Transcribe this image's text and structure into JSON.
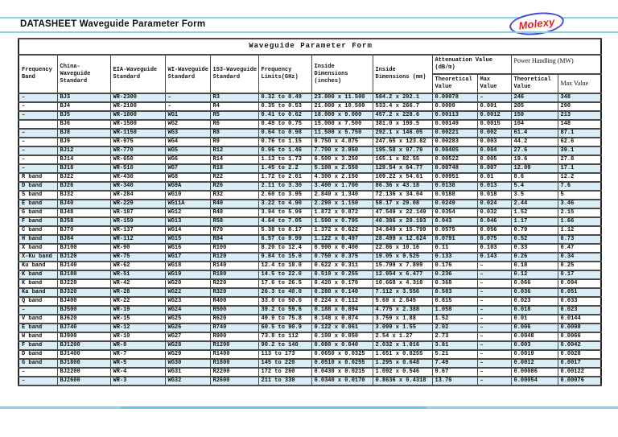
{
  "page": {
    "header_title": "DATASHEET Waveguide Parameter Form",
    "logo_text": "Molexy",
    "table_title": "Waveguide Parameter Form"
  },
  "colors": {
    "accent_rule": "#8ad2ea",
    "row_tint": "#d8edf6",
    "logo_red": "#e81f1f",
    "logo_blue": "#4747d8",
    "grid_line": "#4a4a4a"
  },
  "table": {
    "columns": [
      "Frequency Band",
      "China-Waveguide Standard",
      "EIA-Waveguide Standard",
      "WI-Waveguide Standard",
      "153-Waveguide Standard",
      "Frequency Limits(GHz)",
      "Inside Dimensions (inches)",
      "Inside Dimensions (mm)"
    ],
    "attenuation_header": "Attenuation Value (dB/m)",
    "power_header": "Power Handling (MW)",
    "sub_theoretical": "Theoretical Value",
    "sub_max": "Max Value",
    "rows": [
      [
        "–",
        "BJ3",
        "WR-2300",
        "–",
        "R3",
        "0.32 to 0.49",
        "23.000 x 11.500",
        "584.2 x 292.1",
        "0.00078",
        "–",
        "246",
        "348"
      ],
      [
        "–",
        "BJ4",
        "WR-2100",
        "–",
        "R4",
        "0.35 to 0.53",
        "21.000 x 10.500",
        "533.4 x 266.7",
        "0.0009",
        "0.001",
        "205",
        "290"
      ],
      [
        "–",
        "BJ5",
        "WR-1800",
        "WG1",
        "R5",
        "0.41 to 0.62",
        "18.000 x 9.000",
        "457.2 x 228.6",
        "0.00113",
        "0.0012",
        "150",
        "213"
      ],
      [
        "",
        "BJ6",
        "WR-1500",
        "WG2",
        "R6",
        "0.49 to 0.75",
        "15.000 x 7.500",
        "381.0 x 190.5",
        "0.00149",
        "0.0015",
        "104",
        "148"
      ],
      [
        "–",
        "BJ8",
        "WR-1150",
        "WG3",
        "R8",
        "0.64 to 0.98",
        "11.500 x 5.750",
        "292.1 x 146.05",
        "0.00221",
        "0.002",
        "61.4",
        "87.1"
      ],
      [
        "–",
        "BJ9",
        "WR-975",
        "WG4",
        "R9",
        "0.76 to 1.15",
        "9.750 x 4.875",
        "247.65 x 123.82",
        "0.00283",
        "0.003",
        "44.2",
        "62.6"
      ],
      [
        "–",
        "BJ12",
        "WR-770",
        "WG5",
        "R12",
        "0.96 to 1.46",
        "7.700 x 3.850",
        "195.58 x 97.79",
        "0.00405",
        "0.004",
        "27.6",
        "39.1"
      ],
      [
        "–",
        "BJ14",
        "WR-650",
        "WG6",
        "R14",
        "1.13 to 1.73",
        "6.500 x 3.250",
        "165.1 x 82.55",
        "0.00522",
        "0.005",
        "19.6",
        "27.8"
      ],
      [
        "–",
        "BJ18",
        "WR-510",
        "WG7",
        "R18",
        "1.45 to 2.2",
        "5.100 x 2.550",
        "129.54 x 64.77",
        "0.00748",
        "0.007",
        "12.09",
        "17.1"
      ],
      [
        "R band",
        "BJ22",
        "WR-430",
        "WG8",
        "R22",
        "1.72 to 2.61",
        "4.300 x 2.150",
        "109.22 x 54.61",
        "0.00951",
        "0.01",
        "8.6",
        "12.2"
      ],
      [
        "D band",
        "BJ26",
        "WR-340",
        "WG9A",
        "R26",
        "2.11 to 3.30",
        "3.400 x 1.700",
        "86.36 x 43.18",
        "0.0138",
        "0.013",
        "5.4",
        "7.6"
      ],
      [
        "S band",
        "BJ32",
        "WR-284",
        "WG10",
        "R32",
        "2.60 to 3.95",
        "2.840 x 1.340",
        "72.136 x 34.04",
        "0.0188",
        "0.018",
        "3.5",
        "5"
      ],
      [
        "E band",
        "BJ40",
        "WR-229",
        "WG11A",
        "R40",
        "3.22 to 4.90",
        "2.290 x 1.150",
        "58.17 x 29.08",
        "0.0249",
        "0.024",
        "2.44",
        "3.46"
      ],
      [
        "G band",
        "BJ48",
        "WR-187",
        "WG12",
        "R48",
        "3.94 to 5.99",
        "1.872 x 0.872",
        "47.549 x 22.149",
        "0.0354",
        "0.032",
        "1.52",
        "2.15"
      ],
      [
        "F band",
        "BJ58",
        "WR-159",
        "WG13",
        "R58",
        "4.64 to 7.05",
        "1.590 x 0.795",
        "40.386 x 20.193",
        "0.043",
        "0.046",
        "1.17",
        "1.66"
      ],
      [
        "C band",
        "BJ70",
        "WR-137",
        "WG14",
        "R70",
        "5.38 to 8.17",
        "1.372 x 0.622",
        "34.849 x 15.799",
        "0.0575",
        "0.056",
        "0.79",
        "1.12"
      ],
      [
        "H band",
        "BJ84",
        "WR-112",
        "WG15",
        "R84",
        "6.57 to 9.99",
        "1.122 x 0.497",
        "28.499 x 12.624",
        "0.0791",
        "0.075",
        "0.52",
        "0.73"
      ],
      [
        "X band",
        "BJ100",
        "WR-90",
        "WG16",
        "R100",
        "8.20 to 12.4",
        "0.900 x 0.400",
        "22.86 x 10.16",
        "0.11",
        "0.103",
        "0.33",
        "0.47"
      ],
      [
        "X-Ku band",
        "BJ120",
        "WR-75",
        "WG17",
        "R120",
        "9.84 to 15.0",
        "0.750 x 0.375",
        "19.05 x 9.525",
        "0.133",
        "0.143",
        "0.26",
        "0.34"
      ],
      [
        "Ku band",
        "BJ140",
        "WR-62",
        "WG18",
        "R140",
        "12.4 to 18.0",
        "0.622 x 0.311",
        "15.799 x 7.899",
        "0.176",
        "–",
        "0.18",
        "0.25"
      ],
      [
        "K band",
        "BJ180",
        "WR-51",
        "WG19",
        "R180",
        "14.5 to 22.0",
        "0.510 x 0.255",
        "12.954 x 6.477",
        "0.236",
        "–",
        "0.12",
        "0.17"
      ],
      [
        "K band",
        "BJ220",
        "WR-42",
        "WG20",
        "R220",
        "17.6 to 26.5",
        "0.420 x 0.170",
        "10.668 x 4.318",
        "0.368",
        "–",
        "0.066",
        "0.094"
      ],
      [
        "Ka band",
        "BJ320",
        "WR-28",
        "WG22",
        "R320",
        "26.3 to 40.0",
        "0.280 x 0.140",
        "7.112 x 3.556",
        "0.583",
        "–",
        "0.036",
        "0.051"
      ],
      [
        "Q band",
        "BJ400",
        "WR-22",
        "WG23",
        "R400",
        "33.0 to 50.0",
        "0.224 x 0.112",
        "5.69 x 2.845",
        "0.815",
        "–",
        "0.023",
        "0.033"
      ],
      [
        "–",
        "BJ500",
        "WR-19",
        "WG24",
        "R500",
        "39.2 to 59.6",
        "0.188 x 0.094",
        "4.775 x 2.388",
        "1.058",
        "–",
        "0.018",
        "0.023"
      ],
      [
        "V band",
        "BJ620",
        "WR-15",
        "WG25",
        "R620",
        "49.9 to 75.8",
        "0.148 x 0.074",
        "3.759 x 1.88",
        "1.52",
        "–",
        "0.01",
        "0.0144"
      ],
      [
        "E band",
        "BJ740",
        "WR-12",
        "WG26",
        "R740",
        "60.5 to 90.9",
        "0.122 x 0.061",
        "3.099 x 1.55",
        "2.02",
        "–",
        "0.006",
        "0.0098"
      ],
      [
        "W band",
        "BJ900",
        "WR-10",
        "WG27",
        "R900",
        "73.8 to 112",
        "0.100 x 0.050",
        "2.54 x 1.27",
        "2.73",
        "–",
        "0.0048",
        "0.0066"
      ],
      [
        "F band",
        "BJ1200",
        "WR-8",
        "WG28",
        "R1200",
        "90.2 to 140",
        "0.080 x 0.040",
        "2.032 x 1.016",
        "3.81",
        "–",
        "0.003",
        "0.0042"
      ],
      [
        "D band",
        "BJ1400",
        "WR-7",
        "WG29",
        "R1400",
        "113 to 173",
        "0.0650 x 0.0325",
        "1.651 x 0.8255",
        "5.21",
        "–",
        "0.0019",
        "0.0028"
      ],
      [
        "G band",
        "BJ1800",
        "WR-5",
        "WG30",
        "R1800",
        "145 to 220",
        "0.0510 x 0.0255",
        "1.295 x 0.648",
        "7.49",
        "–",
        "0.0012",
        "0.0017"
      ],
      [
        "–",
        "BJ2200",
        "WR-4",
        "WG31",
        "R2200",
        "172 to 260",
        "0.0430 x 0.0215",
        "1.092 x 0.546",
        "9.67",
        "–",
        "0.00086",
        "0.00122"
      ],
      [
        "–",
        "BJ2600",
        "WR-3",
        "WG32",
        "R2600",
        "211 to 330",
        "0.0340 x 0.0170",
        "0.8636 x 0.4318",
        "13.76",
        "–",
        "0.00054",
        "0.00076"
      ]
    ]
  }
}
